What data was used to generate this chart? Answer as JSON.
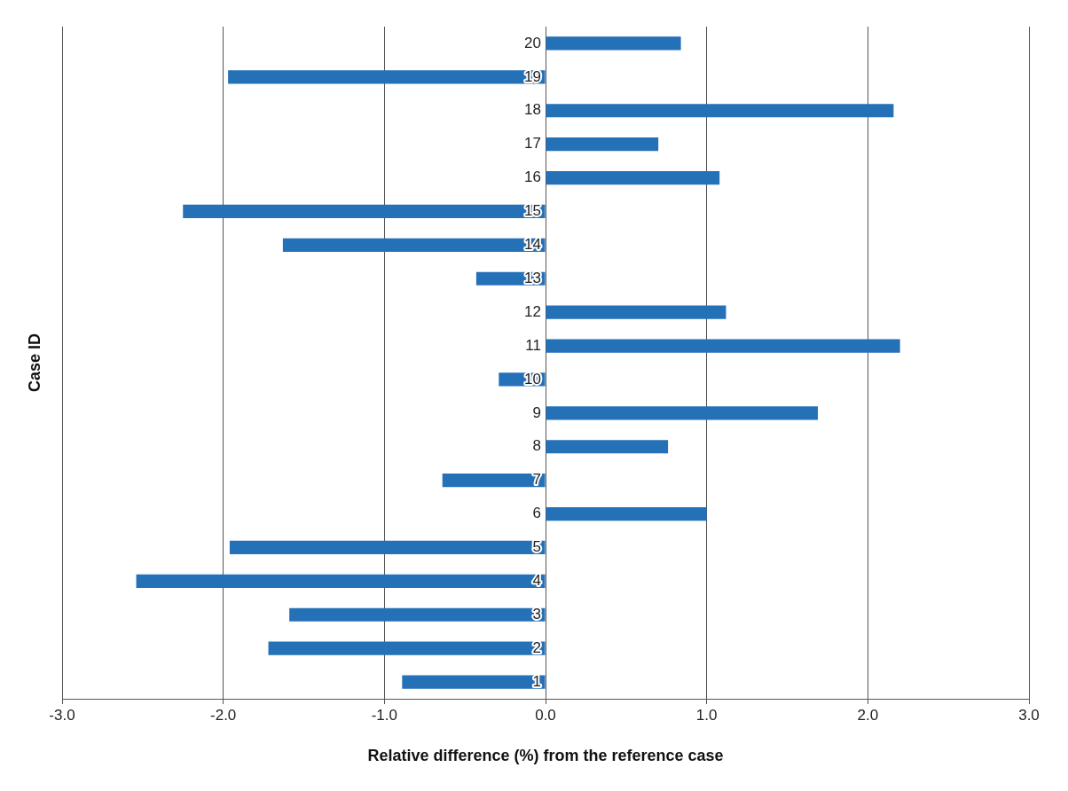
{
  "chart_data": {
    "type": "bar",
    "orientation": "horizontal",
    "xlabel": "Relative difference (%) from the reference case",
    "ylabel": "Case ID",
    "categories": [
      "20",
      "19",
      "18",
      "17",
      "16",
      "15",
      "14",
      "13",
      "12",
      "11",
      "10",
      "9",
      "8",
      "7",
      "6",
      "5",
      "4",
      "3",
      "2",
      "1"
    ],
    "values": [
      0.84,
      -1.97,
      2.16,
      0.7,
      1.08,
      -2.25,
      -1.63,
      -0.43,
      1.12,
      2.2,
      -0.29,
      1.69,
      0.76,
      -0.64,
      1.0,
      -1.96,
      -2.54,
      -1.59,
      -1.72,
      -0.89
    ],
    "color": "#2471b8",
    "xlim": [
      -3,
      3
    ],
    "xticks": [
      {
        "value": -3,
        "label": "-3.0"
      },
      {
        "value": -2,
        "label": "-2.0"
      },
      {
        "value": -1,
        "label": "-1.0"
      },
      {
        "value": 0,
        "label": "0.0"
      },
      {
        "value": 1,
        "label": "1.0"
      },
      {
        "value": 2,
        "label": "2.0"
      },
      {
        "value": 3,
        "label": "3.0"
      }
    ],
    "grid": "x",
    "legend": false
  }
}
